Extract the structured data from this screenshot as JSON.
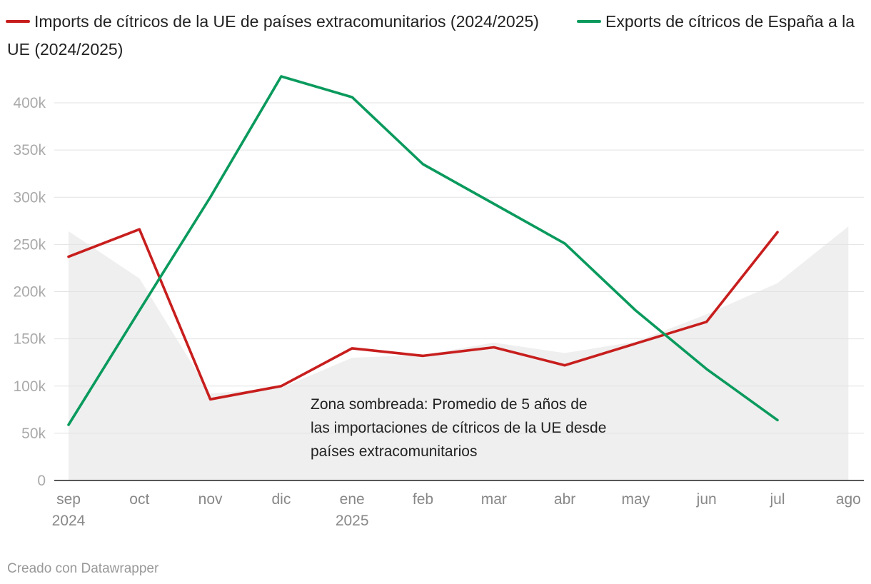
{
  "chart_data": {
    "type": "line",
    "title": "",
    "legend": [
      {
        "name": "Imports de cítricos de la UE de países extracomunitarios (2024/2025)",
        "color": "#c71e1d",
        "line1": "Imports de cítricos de la UE de países extracomunitarios (2024/2025)",
        "line2": ""
      },
      {
        "name": "Exports de cítricos de España a la UE (2024/2025)",
        "color": "#0a9a5d",
        "line1": "Exports de cítricos de España a la",
        "line2": "UE (2024/2025)"
      }
    ],
    "categories": [
      "sep",
      "oct",
      "nov",
      "dic",
      "ene",
      "feb",
      "mar",
      "abr",
      "may",
      "jun",
      "jul",
      "ago"
    ],
    "year_labels": [
      {
        "category": "sep",
        "label": "2024"
      },
      {
        "category": "ene",
        "label": "2025"
      }
    ],
    "ylim": [
      0,
      430000
    ],
    "yticks": [
      0,
      50000,
      100000,
      150000,
      200000,
      250000,
      300000,
      350000,
      400000
    ],
    "ytick_labels": [
      "0",
      "50k",
      "100k",
      "150k",
      "200k",
      "250k",
      "300k",
      "350k",
      "400k"
    ],
    "shaded_area": {
      "name": "Promedio de 5 años de las importaciones de cítricos de la UE desde países extracomunitarios",
      "color": "#efefef",
      "values": [
        264000,
        214000,
        92000,
        98000,
        130000,
        133000,
        146000,
        135000,
        147000,
        176000,
        209000,
        269000
      ]
    },
    "series": [
      {
        "name": "Imports de cítricos de la UE de países extracomunitarios (2024/2025)",
        "color": "#c71e1d",
        "values": [
          237000,
          266000,
          86000,
          100000,
          140000,
          132000,
          141000,
          122000,
          145000,
          168000,
          263000,
          null
        ]
      },
      {
        "name": "Exports de cítricos de España a la UE (2024/2025)",
        "color": "#0a9a5d",
        "values": [
          59000,
          180000,
          300000,
          428000,
          406000,
          335000,
          293000,
          251000,
          180000,
          118000,
          64000,
          null
        ]
      }
    ],
    "annotation": [
      "Zona sombreada: Promedio de 5 años de",
      "las importaciones de cítricos de la UE desde",
      "países extracomunitarios"
    ]
  },
  "footer": {
    "credit": "Creado con Datawrapper"
  }
}
